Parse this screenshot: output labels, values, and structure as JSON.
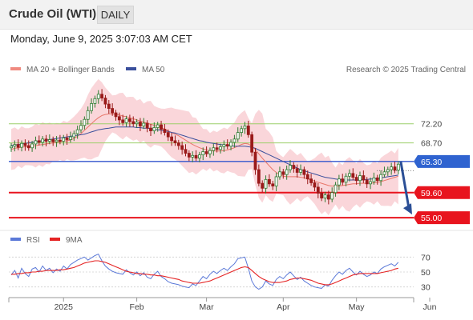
{
  "header": {
    "instrument": "Crude Oil (WTI)",
    "period": "DAILY"
  },
  "datetime": "Monday, June 9, 2025 3:07:03 AM CET",
  "colors": {
    "bullish": "#2e7d32",
    "bearish": "#9a1a1a",
    "ma20": "#e9766a",
    "ma50": "#3a4f9c",
    "band": "#f9cfd3",
    "support": "#e8141e",
    "resistance": "#9ccf6a",
    "pivot": "#3355cc",
    "arrow": "#2b4f96",
    "rsi": "#5b79d8",
    "rsi_ma": "#e52424"
  },
  "chart_data": [
    {
      "type": "candlestick",
      "legend": [
        {
          "name": "MA 20 + Bollinger Bands",
          "color": "#f08a80"
        },
        {
          "name": "MA 50",
          "color": "#3a4f9c"
        }
      ],
      "credit": "Research © 2025 Trading Central",
      "ylim": [
        54,
        80.5
      ],
      "levels": [
        {
          "value": 72.2,
          "label": "72.20",
          "kind": "resistance"
        },
        {
          "value": 68.7,
          "label": "68.70",
          "kind": "resistance"
        },
        {
          "value": 65.3,
          "label": "65.30",
          "kind": "pivot"
        },
        {
          "value": 59.6,
          "label": "59.60",
          "kind": "support"
        },
        {
          "value": 55.0,
          "label": "55.00",
          "kind": "support"
        }
      ],
      "last_close": 64.8,
      "arrow": {
        "from_value": 65.3,
        "to_value": 55.0
      },
      "month_labels": [
        {
          "label": "2025",
          "index": 15
        },
        {
          "label": "Feb",
          "index": 36
        },
        {
          "label": "Mar",
          "index": 56
        },
        {
          "label": "Apr",
          "index": 78
        },
        {
          "label": "May",
          "index": 99
        },
        {
          "label": "Jun",
          "index": 120
        }
      ],
      "closes": [
        68.1,
        68.4,
        67.9,
        68.6,
        68.2,
        67.8,
        68.5,
        69.1,
        68.8,
        69.4,
        69.0,
        69.3,
        68.9,
        69.2,
        69.0,
        69.6,
        69.3,
        69.8,
        70.4,
        71.1,
        71.9,
        73.0,
        74.6,
        75.9,
        76.8,
        77.6,
        76.9,
        75.8,
        75.0,
        74.2,
        73.5,
        72.9,
        72.4,
        73.1,
        72.6,
        72.2,
        72.5,
        71.8,
        72.3,
        71.4,
        70.9,
        71.5,
        72.0,
        71.2,
        70.6,
        69.8,
        69.1,
        68.7,
        68.2,
        67.5,
        66.8,
        66.1,
        66.4,
        65.9,
        66.5,
        67.1,
        66.7,
        67.3,
        67.8,
        67.5,
        68.0,
        68.4,
        68.1,
        68.8,
        69.4,
        70.6,
        71.3,
        71.8,
        70.2,
        67.0,
        63.8,
        61.3,
        60.4,
        62.0,
        61.2,
        60.8,
        62.5,
        63.4,
        62.9,
        63.8,
        64.6,
        64.0,
        63.3,
        63.8,
        62.9,
        62.1,
        61.4,
        60.6,
        59.5,
        58.6,
        59.2,
        58.4,
        59.6,
        61.0,
        62.1,
        61.5,
        62.6,
        63.1,
        62.4,
        61.8,
        62.7,
        61.9,
        61.2,
        61.6,
        62.3,
        61.8,
        62.9,
        63.4,
        63.8,
        64.3,
        63.7,
        64.8
      ],
      "ma20": [
        67.5,
        67.7,
        67.8,
        67.9,
        68.0,
        68.0,
        68.1,
        68.2,
        68.3,
        68.4,
        68.5,
        68.6,
        68.7,
        68.8,
        68.9,
        69.0,
        69.1,
        69.2,
        69.5,
        69.9,
        70.4,
        71.0,
        71.6,
        72.2,
        72.8,
        73.3,
        73.7,
        73.9,
        74.0,
        74.0,
        73.9,
        73.8,
        73.6,
        73.5,
        73.3,
        73.1,
        72.9,
        72.7,
        72.5,
        72.3,
        72.1,
        71.9,
        71.7,
        71.5,
        71.2,
        70.9,
        70.6,
        70.3,
        70.0,
        69.6,
        69.2,
        68.8,
        68.4,
        68.1,
        67.8,
        67.6,
        67.4,
        67.3,
        67.2,
        67.2,
        67.2,
        67.3,
        67.4,
        67.6,
        67.8,
        68.1,
        68.4,
        68.6,
        68.5,
        68.1,
        67.5,
        66.7,
        65.9,
        65.2,
        64.5,
        63.8,
        63.3,
        62.9,
        62.6,
        62.5,
        62.5,
        62.5,
        62.5,
        62.4,
        62.3,
        62.1,
        61.9,
        61.7,
        61.5,
        61.3,
        61.1,
        60.9,
        60.8,
        60.8,
        60.8,
        60.9,
        61.0,
        61.1,
        61.2,
        61.2,
        61.3,
        61.3,
        61.3,
        61.3,
        61.4,
        61.5,
        61.6,
        61.8,
        62.0,
        62.2,
        62.4,
        62.6
      ],
      "ma50": [
        68.2,
        68.3,
        68.4,
        68.5,
        68.6,
        68.7,
        68.8,
        68.9,
        69.0,
        69.1,
        69.2,
        69.3,
        69.4,
        69.5,
        69.6,
        69.7,
        69.8,
        69.9,
        70.0,
        70.1,
        70.2,
        70.3,
        70.5,
        70.7,
        70.9,
        71.1,
        71.2,
        71.3,
        71.4,
        71.5,
        71.6,
        71.6,
        71.6,
        71.6,
        71.6,
        71.6,
        71.5,
        71.5,
        71.4,
        71.4,
        71.3,
        71.2,
        71.1,
        71.0,
        70.9,
        70.8,
        70.6,
        70.5,
        70.3,
        70.1,
        69.9,
        69.7,
        69.5,
        69.3,
        69.1,
        69.0,
        68.8,
        68.7,
        68.6,
        68.5,
        68.4,
        68.3,
        68.2,
        68.2,
        68.1,
        68.1,
        68.1,
        68.1,
        68.0,
        67.9,
        67.7,
        67.4,
        67.1,
        66.8,
        66.5,
        66.2,
        65.9,
        65.6,
        65.3,
        65.0,
        64.7,
        64.4,
        64.1,
        63.8,
        63.6,
        63.4,
        63.2,
        63.0,
        62.8,
        62.6,
        62.4,
        62.3,
        62.2,
        62.1,
        62.0,
        61.9,
        61.9,
        61.9,
        61.9,
        61.9,
        61.9,
        62.0,
        62.0,
        62.1,
        62.1,
        62.2,
        62.3,
        62.4,
        62.5,
        62.6,
        62.7,
        62.8
      ]
    },
    {
      "type": "line",
      "legend": [
        {
          "name": "RSI",
          "color": "#5b79d8"
        },
        {
          "name": "9MA",
          "color": "#e52424"
        }
      ],
      "ylim": [
        20,
        80
      ],
      "ticks": [
        70,
        50,
        30
      ],
      "rsi": [
        46,
        52,
        42,
        55,
        48,
        44,
        54,
        56,
        50,
        58,
        52,
        55,
        49,
        54,
        51,
        58,
        54,
        60,
        63,
        66,
        68,
        70,
        66,
        69,
        72,
        74,
        65,
        58,
        54,
        51,
        49,
        48,
        47,
        53,
        49,
        46,
        50,
        45,
        49,
        43,
        41,
        47,
        51,
        44,
        41,
        37,
        35,
        34,
        33,
        31,
        30,
        29,
        34,
        32,
        38,
        44,
        41,
        47,
        51,
        48,
        52,
        55,
        52,
        57,
        61,
        68,
        69,
        70,
        55,
        38,
        30,
        27,
        30,
        38,
        34,
        32,
        40,
        44,
        41,
        46,
        50,
        45,
        40,
        43,
        38,
        35,
        32,
        30,
        29,
        28,
        33,
        31,
        39,
        45,
        50,
        47,
        52,
        55,
        50,
        46,
        51,
        47,
        44,
        46,
        50,
        48,
        54,
        57,
        59,
        61,
        58,
        63
      ],
      "ma9": [
        47,
        47,
        48,
        48,
        49,
        49,
        50,
        50,
        51,
        51,
        52,
        52,
        52,
        52,
        53,
        53,
        54,
        55,
        56,
        58,
        60,
        62,
        63,
        64,
        65,
        65,
        64,
        63,
        61,
        59,
        57,
        55,
        53,
        51,
        50,
        49,
        48,
        48,
        47,
        47,
        46,
        46,
        45,
        45,
        44,
        43,
        42,
        41,
        40,
        38,
        37,
        36,
        35,
        35,
        35,
        36,
        37,
        38,
        40,
        42,
        44,
        46,
        48,
        50,
        52,
        54,
        56,
        57,
        56,
        52,
        48,
        44,
        41,
        39,
        37,
        36,
        36,
        36,
        37,
        38,
        40,
        41,
        42,
        42,
        41,
        40,
        39,
        37,
        35,
        34,
        33,
        33,
        34,
        36,
        38,
        40,
        42,
        44,
        46,
        47,
        48,
        48,
        48,
        48,
        48,
        48,
        49,
        50,
        51,
        52,
        54,
        55
      ]
    }
  ]
}
